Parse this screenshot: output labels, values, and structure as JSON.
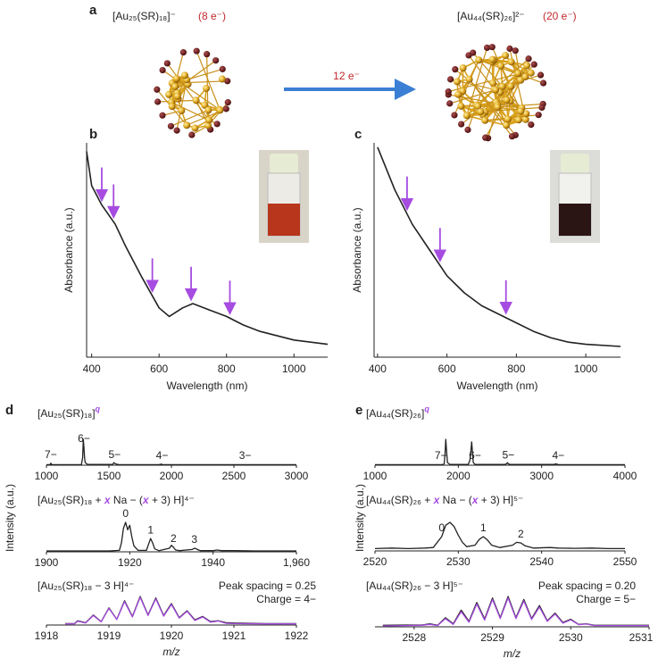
{
  "panel_a": {
    "label": "a",
    "left_formula": "[Au₂₅(SR)₁₈]⁻",
    "left_electrons": "(8 e⁻)",
    "right_formula": "[Au₄₄(SR)₂₆]²⁻",
    "right_electrons": "(20 e⁻)",
    "arrow_label": "12 e⁻"
  },
  "chart_data": [
    {
      "type": "line",
      "panel": "b",
      "xlabel": "Wavelength (nm)",
      "ylabel": "Absorbance (a.u.)",
      "xlim": [
        385,
        1100
      ],
      "ylim": [
        0,
        1
      ],
      "xticks": [
        400,
        600,
        800,
        1000
      ],
      "x": [
        385,
        400,
        430,
        470,
        500,
        550,
        600,
        630,
        670,
        700,
        750,
        800,
        850,
        900,
        1000,
        1100
      ],
      "series": [
        {
          "color": "#222222",
          "values": [
            0.96,
            0.8,
            0.71,
            0.62,
            0.52,
            0.37,
            0.23,
            0.19,
            0.23,
            0.25,
            0.22,
            0.19,
            0.15,
            0.12,
            0.08,
            0.06
          ]
        }
      ],
      "arrow_x": [
        430,
        465,
        580,
        695,
        810
      ],
      "arrow_color": "#a64ce0"
    },
    {
      "type": "line",
      "panel": "c",
      "xlabel": "Wavelength (nm)",
      "ylabel": "Absorbance (a.u.)",
      "xlim": [
        390,
        1100
      ],
      "ylim": [
        0,
        1
      ],
      "xticks": [
        400,
        600,
        800,
        1000
      ],
      "x": [
        400,
        450,
        500,
        550,
        600,
        650,
        700,
        750,
        800,
        850,
        900,
        950,
        1000,
        1100
      ],
      "series": [
        {
          "color": "#222222",
          "values": [
            0.98,
            0.78,
            0.62,
            0.5,
            0.38,
            0.3,
            0.24,
            0.2,
            0.16,
            0.12,
            0.09,
            0.07,
            0.06,
            0.05
          ]
        }
      ],
      "arrow_x": [
        485,
        580,
        770
      ],
      "arrow_color": "#a64ce0"
    },
    {
      "type": "line",
      "panel": "d",
      "ylabel": "Intensity (a.u.)",
      "title_parts": [
        "[Au₂₅(SR)₁₈]",
        "q"
      ],
      "xlim": [
        1000,
        3000
      ],
      "ylim": [
        0,
        1
      ],
      "xticks": [
        1000,
        1500,
        2000,
        2500,
        3000
      ],
      "x": [
        1000,
        1030,
        1035,
        1040,
        1050,
        1280,
        1290,
        1295,
        1300,
        1305,
        1310,
        1330,
        1530,
        1540,
        1550,
        1560,
        1580,
        1900,
        1920,
        1930,
        3000
      ],
      "series": [
        {
          "color": "#222222",
          "values": [
            0.02,
            0.02,
            0.08,
            0.03,
            0.02,
            0.02,
            0.3,
            1,
            0.7,
            0.3,
            0.1,
            0.03,
            0.03,
            0.1,
            0.06,
            0.04,
            0.02,
            0.02,
            0.04,
            0.02,
            0.02
          ]
        }
      ],
      "peak_labels": [
        {
          "x": 1035,
          "label": "7−"
        },
        {
          "x": 1300,
          "label": "6−"
        },
        {
          "x": 1545,
          "label": "5−"
        },
        {
          "x": 1925,
          "label": "4−"
        },
        {
          "x": 2590,
          "label": "3−"
        }
      ],
      "peak_label_color": "#a64ce0"
    },
    {
      "type": "line",
      "title_parts": [
        "[Au₂₅(SR)₁₈ + ",
        "x",
        " Na − (",
        "x",
        " + 3) H]⁴⁻"
      ],
      "xlim": [
        1900,
        1960
      ],
      "ylim": [
        0,
        1
      ],
      "xticks": [
        1900,
        1920,
        1940,
        {
          "value": 1960,
          "label": "1,960"
        }
      ],
      "x": [
        1900,
        1905,
        1910,
        1915,
        1917.5,
        1918,
        1918.5,
        1919,
        1919.5,
        1920,
        1920.5,
        1921,
        1922,
        1924,
        1924.5,
        1925,
        1925.5,
        1926,
        1927,
        1929.5,
        1930,
        1930.5,
        1931,
        1932,
        1935,
        1935.5,
        1936,
        1936.5,
        1937,
        1940,
        1941,
        1942,
        1945,
        1950,
        1955,
        1960
      ],
      "series": [
        {
          "color": "#222222",
          "values": [
            0.03,
            0.03,
            0.03,
            0.03,
            0.05,
            0.3,
            0.8,
            1.0,
            0.75,
            0.9,
            0.5,
            0.2,
            0.05,
            0.05,
            0.25,
            0.45,
            0.3,
            0.1,
            0.04,
            0.12,
            0.22,
            0.15,
            0.06,
            0.04,
            0.08,
            0.12,
            0.1,
            0.06,
            0.04,
            0.04,
            0.06,
            0.04,
            0.04,
            0.03,
            0.03,
            0.03
          ]
        }
      ],
      "peak_labels": [
        {
          "x": 1919,
          "label": "0"
        },
        {
          "x": 1925,
          "label": "1"
        },
        {
          "x": 1930.5,
          "label": "2"
        },
        {
          "x": 1935.5,
          "label": "3"
        }
      ],
      "peak_label_color": "#a64ce0"
    },
    {
      "type": "line",
      "title": "[Au₂₅(SR)₁₈ − 3 H]⁴⁻",
      "xlabel": "m/z",
      "xlim": [
        1918,
        1922
      ],
      "ylim": [
        0,
        1
      ],
      "xticks": [
        1918,
        1919,
        1920,
        1921,
        1922
      ],
      "annotations": [
        "Peak spacing = 0.25",
        "Charge =  4−"
      ],
      "x": [
        1918.3,
        1918.45,
        1918.5,
        1918.625,
        1918.75,
        1918.875,
        1919,
        1919.125,
        1919.25,
        1919.375,
        1919.5,
        1919.625,
        1919.75,
        1919.875,
        1920,
        1920.125,
        1920.25,
        1920.375,
        1920.5,
        1920.625,
        1920.75,
        1920.875,
        1921,
        1921.5,
        1922
      ],
      "series": [
        {
          "color": "#222222",
          "values": [
            0.05,
            0.05,
            0.15,
            0.08,
            0.35,
            0.12,
            0.6,
            0.2,
            0.85,
            0.3,
            1.0,
            0.35,
            0.95,
            0.33,
            0.75,
            0.26,
            0.5,
            0.18,
            0.3,
            0.12,
            0.15,
            0.08,
            0.07,
            0.05,
            0.05
          ]
        },
        {
          "color": "#a64ce0",
          "values": [
            0.04,
            0.04,
            0.13,
            0.07,
            0.33,
            0.11,
            0.58,
            0.19,
            0.82,
            0.28,
            0.97,
            0.33,
            0.92,
            0.31,
            0.72,
            0.24,
            0.48,
            0.16,
            0.28,
            0.1,
            0.14,
            0.06,
            0.05,
            0.04,
            0.04
          ]
        }
      ]
    },
    {
      "type": "line",
      "panel": "e",
      "ylabel": "Intensity (a.u.)",
      "title_parts": [
        "[Au₄₄(SR)₂₆]",
        "q"
      ],
      "xlim": [
        1000,
        4000
      ],
      "ylim": [
        0,
        1
      ],
      "xticks": [
        1000,
        2000,
        3000,
        4000
      ],
      "x": [
        1000,
        1800,
        1830,
        1840,
        1850,
        1860,
        1870,
        1900,
        2120,
        2140,
        2150,
        2160,
        2170,
        2180,
        2200,
        2560,
        2580,
        2590,
        2600,
        2620,
        3150,
        3170,
        3180,
        3200,
        4000
      ],
      "series": [
        {
          "color": "#222222",
          "values": [
            0.02,
            0.02,
            0.05,
            0.4,
            1.0,
            0.5,
            0.1,
            0.03,
            0.03,
            0.2,
            0.5,
            0.9,
            0.5,
            0.1,
            0.03,
            0.03,
            0.06,
            0.1,
            0.05,
            0.03,
            0.03,
            0.05,
            0.04,
            0.02,
            0.02
          ]
        }
      ],
      "peak_labels": [
        {
          "x": 1790,
          "label": "7−"
        },
        {
          "x": 2200,
          "label": "6−"
        },
        {
          "x": 2600,
          "label": "5−"
        },
        {
          "x": 3200,
          "label": "4−"
        }
      ],
      "peak_label_color": "#a64ce0"
    },
    {
      "type": "line",
      "title_parts": [
        "[Au₄₄(SR)₂₆ + ",
        "x",
        " Na − (",
        "x",
        " + 3) H]⁵⁻"
      ],
      "xlim": [
        2520,
        2550
      ],
      "ylim": [
        0,
        1
      ],
      "xticks": [
        2520,
        2530,
        2540,
        2550
      ],
      "x": [
        2520,
        2522,
        2524,
        2526,
        2527,
        2528,
        2528.5,
        2529,
        2529.5,
        2530,
        2530.5,
        2531,
        2532,
        2532.5,
        2533,
        2533.5,
        2534,
        2535,
        2536.5,
        2537,
        2537.5,
        2538,
        2539,
        2541,
        2542,
        2544,
        2546,
        2548,
        2550
      ],
      "series": [
        {
          "color": "#222222",
          "values": [
            0.08,
            0.1,
            0.08,
            0.1,
            0.12,
            0.5,
            0.9,
            1.0,
            0.85,
            0.55,
            0.3,
            0.15,
            0.2,
            0.4,
            0.5,
            0.38,
            0.2,
            0.12,
            0.2,
            0.3,
            0.28,
            0.18,
            0.1,
            0.12,
            0.1,
            0.09,
            0.1,
            0.08,
            0.08
          ]
        }
      ],
      "peak_labels": [
        {
          "x": 2528,
          "label": "0"
        },
        {
          "x": 2533,
          "label": "1"
        },
        {
          "x": 2537.5,
          "label": "2"
        }
      ],
      "peak_label_color": "#a64ce0"
    },
    {
      "type": "line",
      "title": "[Au₄₄(SR)₂₆ − 3 H]⁵⁻",
      "xlabel": "m/z",
      "xlim": [
        2527.5,
        2531
      ],
      "ylim": [
        0,
        1
      ],
      "xticks": [
        2528,
        2529,
        2530,
        2531
      ],
      "annotations": [
        "Peak spacing = 0.20",
        "Charge =  5−"
      ],
      "x": [
        2527.6,
        2527.9,
        2528.1,
        2528.2,
        2528.3,
        2528.4,
        2528.5,
        2528.6,
        2528.7,
        2528.8,
        2528.9,
        2529.0,
        2529.1,
        2529.2,
        2529.3,
        2529.4,
        2529.5,
        2529.6,
        2529.7,
        2529.8,
        2529.9,
        2530.0,
        2530.1,
        2530.2,
        2530.3,
        2530.6,
        2531.0
      ],
      "series": [
        {
          "color": "#222222",
          "values": [
            0.05,
            0.06,
            0.06,
            0.1,
            0.05,
            0.3,
            0.1,
            0.55,
            0.18,
            0.8,
            0.26,
            0.95,
            0.3,
            1.0,
            0.3,
            0.9,
            0.27,
            0.7,
            0.2,
            0.45,
            0.14,
            0.25,
            0.08,
            0.1,
            0.05,
            0.05,
            0.05
          ]
        },
        {
          "color": "#a64ce0",
          "values": [
            0.03,
            0.04,
            0.05,
            0.08,
            0.04,
            0.27,
            0.08,
            0.5,
            0.15,
            0.75,
            0.22,
            0.9,
            0.27,
            0.95,
            0.27,
            0.85,
            0.24,
            0.65,
            0.18,
            0.42,
            0.12,
            0.23,
            0.07,
            0.09,
            0.04,
            0.04,
            0.04
          ]
        }
      ]
    }
  ]
}
